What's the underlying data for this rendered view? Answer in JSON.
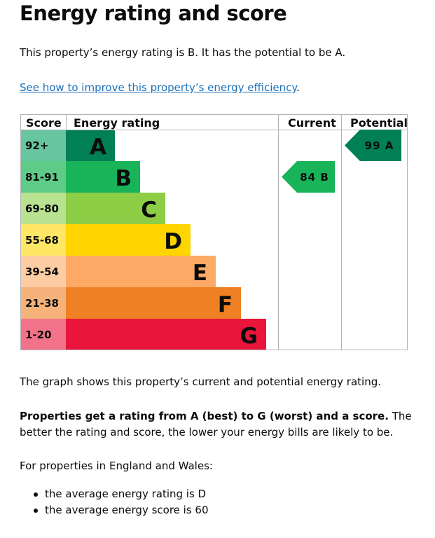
{
  "page": {
    "title": "Energy rating and score",
    "intro": "This property’s energy rating is B. It has the potential to be A.",
    "improve_link": "See how to improve this property’s energy efficiency",
    "improve_link_after": ".",
    "caption": "The graph shows this property’s current and potential energy rating.",
    "explain_bold": "Properties get a rating from A (best) to G (worst) and a score.",
    "explain_rest": " The better the rating and score, the lower your energy bills are likely to be.",
    "regional_intro": "For properties in England and Wales:",
    "bullets": [
      "the average energy rating is D",
      "the average energy score is 60"
    ]
  },
  "chart_data": {
    "type": "table",
    "headers": {
      "score": "Score",
      "rating": "Energy rating",
      "current": "Current",
      "potential": "Potential"
    },
    "bands": [
      {
        "range": "92+",
        "letter": "A",
        "color": "#008054",
        "score_bg": "#67c6a0"
      },
      {
        "range": "81-91",
        "letter": "B",
        "color": "#19b459",
        "score_bg": "#5fcb88"
      },
      {
        "range": "69-80",
        "letter": "C",
        "color": "#8dce46",
        "score_bg": "#b8e290"
      },
      {
        "range": "55-68",
        "letter": "D",
        "color": "#ffd500",
        "score_bg": "#ffe766"
      },
      {
        "range": "39-54",
        "letter": "E",
        "color": "#fcaa65",
        "score_bg": "#fdcca3"
      },
      {
        "range": "21-38",
        "letter": "F",
        "color": "#ef8023",
        "score_bg": "#f5b37b"
      },
      {
        "range": "1-20",
        "letter": "G",
        "color": "#e9153b",
        "score_bg": "#f27389"
      }
    ],
    "current": {
      "score": 84,
      "letter": "B",
      "label": "84 B",
      "color": "#19b459"
    },
    "potential": {
      "score": 99,
      "letter": "A",
      "label": "99 A",
      "color": "#008054"
    }
  }
}
